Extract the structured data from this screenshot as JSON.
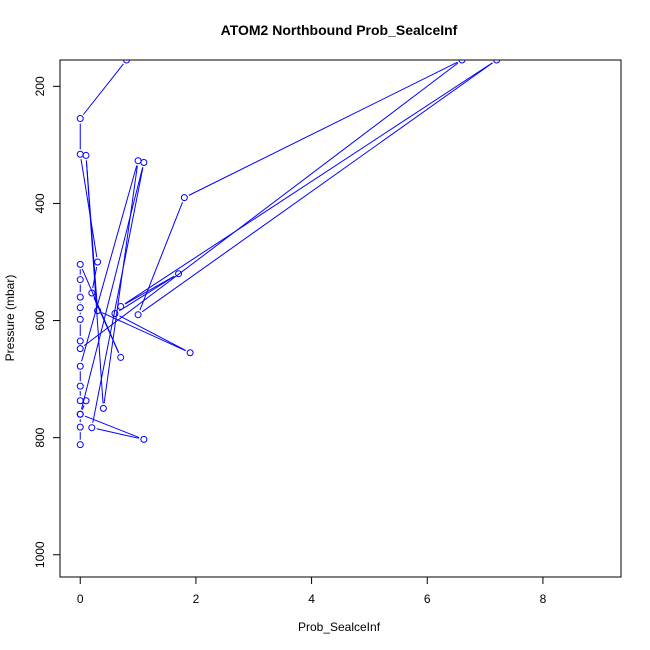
{
  "chart_data": {
    "type": "line",
    "title": "ATOM2 Northbound Prob_SealceInf",
    "xlabel": "Prob_SealceInf",
    "ylabel": "Pressure (mbar)",
    "xlim": [
      -0.35,
      9.35
    ],
    "ylim": [
      1038,
      155
    ],
    "y_reversed": true,
    "x_ticks": [
      0,
      2,
      4,
      6,
      8
    ],
    "y_ticks": [
      200,
      400,
      600,
      800,
      1000
    ],
    "grid": false,
    "legend": "none",
    "series": [
      {
        "line_color": "#0000ff",
        "marker": "open-circle",
        "points": [
          {
            "x": 0.0,
            "y": 812
          },
          {
            "x": 0.0,
            "y": 782
          },
          {
            "x": 0.0,
            "y": 760
          },
          {
            "x": 1.1,
            "y": 803
          },
          {
            "x": 0.2,
            "y": 783
          },
          {
            "x": 1.1,
            "y": 330
          },
          {
            "x": 0.0,
            "y": 760
          },
          {
            "x": 0.1,
            "y": 737
          },
          {
            "x": 0.0,
            "y": 737
          },
          {
            "x": 0.0,
            "y": 712
          },
          {
            "x": 0.0,
            "y": 678
          },
          {
            "x": 1.0,
            "y": 327
          },
          {
            "x": 0.4,
            "y": 750
          },
          {
            "x": 0.1,
            "y": 318
          },
          {
            "x": 0.3,
            "y": 583
          },
          {
            "x": 1.9,
            "y": 655
          },
          {
            "x": 0.6,
            "y": 588
          },
          {
            "x": 1.7,
            "y": 520
          },
          {
            "x": 0.7,
            "y": 576
          },
          {
            "x": 7.2,
            "y": 155
          },
          {
            "x": 1.0,
            "y": 590
          },
          {
            "x": 1.8,
            "y": 390
          },
          {
            "x": 6.6,
            "y": 155
          },
          {
            "x": 0.0,
            "y": 648
          },
          {
            "x": 0.0,
            "y": 635
          },
          {
            "x": 0.0,
            "y": 598
          },
          {
            "x": 0.0,
            "y": 578
          },
          {
            "x": 0.0,
            "y": 560
          },
          {
            "x": 0.0,
            "y": 530
          },
          {
            "x": 0.0,
            "y": 504
          },
          {
            "x": 0.7,
            "y": 663
          },
          {
            "x": 0.2,
            "y": 553
          },
          {
            "x": 0.3,
            "y": 500
          },
          {
            "x": 0.0,
            "y": 316
          },
          {
            "x": 0.0,
            "y": 255
          },
          {
            "x": 0.8,
            "y": 155
          }
        ]
      }
    ]
  }
}
